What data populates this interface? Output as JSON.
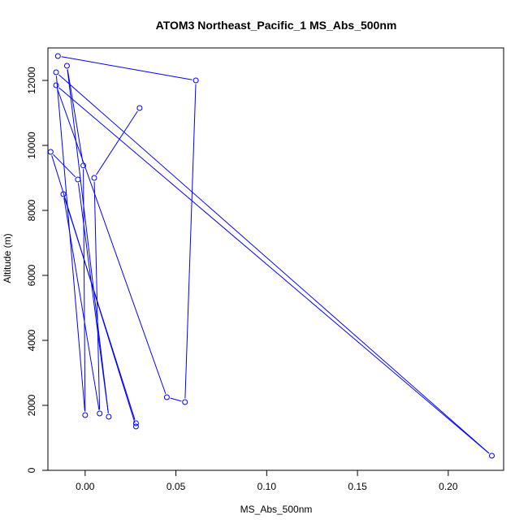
{
  "chart_data": {
    "type": "line",
    "title": "ATOM3 Northeast_Pacific_1 MS_Abs_500nm",
    "xlabel": "MS_Abs_500nm",
    "ylabel": "Altitude (m)",
    "xlim": [
      -0.0205,
      0.2305
    ],
    "ylim": [
      0,
      13000
    ],
    "xticks": [
      0.0,
      0.05,
      0.1,
      0.15,
      0.2
    ],
    "xtick_labels": [
      "0.00",
      "0.05",
      "0.10",
      "0.15",
      "0.20"
    ],
    "yticks": [
      0,
      2000,
      4000,
      6000,
      8000,
      10000,
      12000
    ],
    "ytick_labels": [
      "0",
      "2000",
      "4000",
      "6000",
      "8000",
      "10000",
      "12000"
    ],
    "grid": false,
    "legend": "none",
    "series_color": "#0000ff",
    "points": [
      {
        "x": 0.03,
        "y": 11150
      },
      {
        "x": 0.005,
        "y": 9000
      },
      {
        "x": 0.008,
        "y": 1750
      },
      {
        "x": -0.012,
        "y": 8500
      },
      {
        "x": 0.028,
        "y": 1450
      },
      {
        "x": 0.028,
        "y": 1350
      },
      {
        "x": -0.019,
        "y": 9800
      },
      {
        "x": -0.004,
        "y": 8950
      },
      {
        "x": 0.013,
        "y": 1650
      },
      {
        "x": -0.01,
        "y": 12450
      },
      {
        "x": -0.001,
        "y": 9380
      },
      {
        "x": 0.0,
        "y": 1700
      },
      {
        "x": -0.016,
        "y": 12250
      },
      {
        "x": 0.224,
        "y": 450
      },
      {
        "x": -0.016,
        "y": 11850
      },
      {
        "x": 0.045,
        "y": 2250
      },
      {
        "x": 0.055,
        "y": 2100
      },
      {
        "x": 0.061,
        "y": 12000
      },
      {
        "x": -0.015,
        "y": 12750
      }
    ]
  }
}
